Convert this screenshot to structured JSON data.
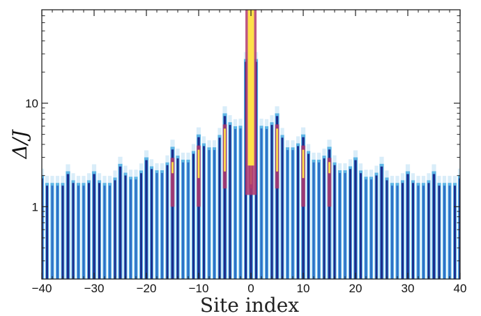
{
  "chart_data": {
    "type": "heatmap",
    "title": "",
    "xlabel": "Site index",
    "ylabel": "Δ/J",
    "xlim": [
      -40,
      40
    ],
    "ylim": [
      0.2,
      80
    ],
    "y_scale": "log",
    "x_ticks": [
      -40,
      -30,
      -20,
      -10,
      0,
      10,
      20,
      30,
      40
    ],
    "x_tick_labels": [
      "−40",
      "−30",
      "−20",
      "−10",
      "0",
      "10",
      "20",
      "30",
      "40"
    ],
    "y_ticks": [
      1,
      10
    ],
    "y_tick_labels": [
      "1",
      "10"
    ],
    "grid": false,
    "colormap": [
      "#ffffff",
      "#cfe9f7",
      "#5fb6e6",
      "#2f6fc6",
      "#1c2c8c",
      "#b23a6e",
      "#ffe14a"
    ],
    "peak_envelope": {
      "sites": [
        -40,
        -35,
        -30,
        -25,
        -20,
        -15,
        -10,
        -5,
        0,
        5,
        10,
        15,
        20,
        25,
        30,
        35,
        40
      ],
      "top_delta_over_J": [
        2.0,
        2.2,
        2.2,
        2.6,
        3.0,
        3.8,
        5.0,
        8.0,
        80,
        8.0,
        5.0,
        3.8,
        3.0,
        2.6,
        2.2,
        2.2,
        2.0
      ]
    }
  }
}
